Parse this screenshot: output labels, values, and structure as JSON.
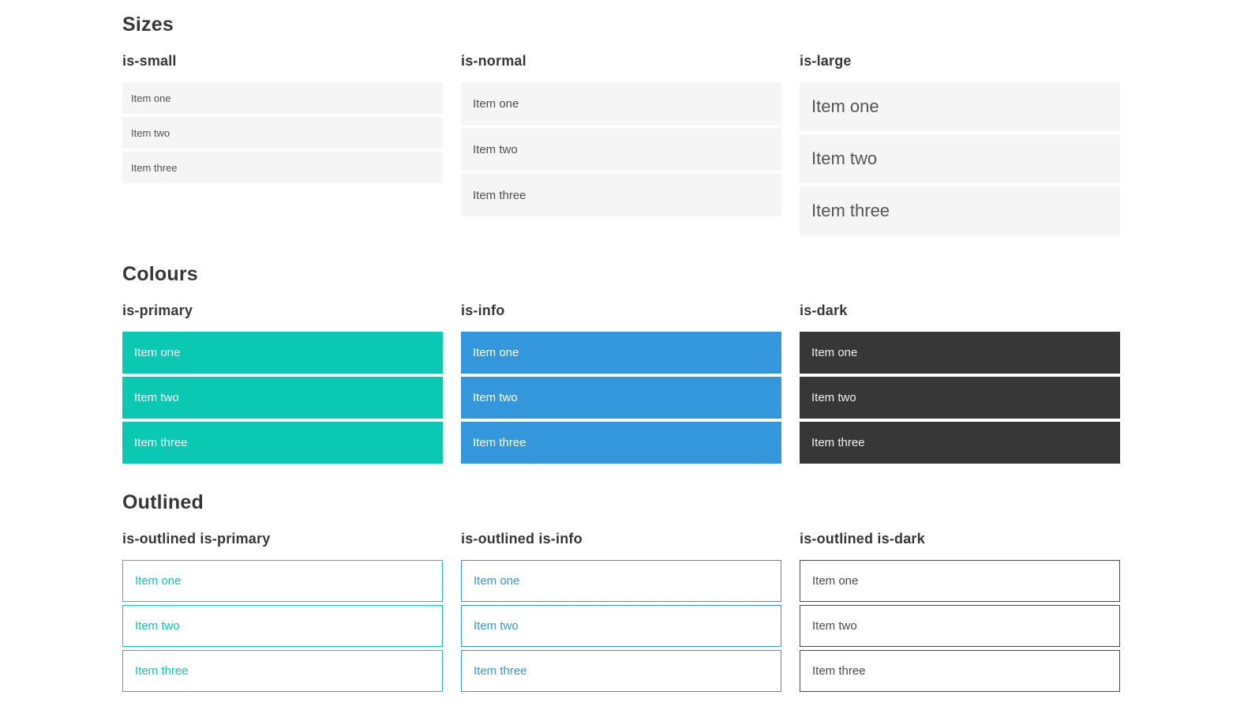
{
  "theme": {
    "primary": "#0bc8b2",
    "info": "#3496db",
    "dark": "#373737",
    "item-bg": "#f5f5f5"
  },
  "sections": [
    {
      "title": "Sizes",
      "groups": [
        {
          "label": "is-small",
          "items": [
            "Item one",
            "Item two",
            "Item three"
          ]
        },
        {
          "label": "is-normal",
          "items": [
            "Item one",
            "Item two",
            "Item three"
          ]
        },
        {
          "label": "is-large",
          "items": [
            "Item one",
            "Item two",
            "Item three"
          ]
        }
      ]
    },
    {
      "title": "Colours",
      "groups": [
        {
          "label": "is-primary",
          "items": [
            "Item one",
            "Item two",
            "Item three"
          ]
        },
        {
          "label": "is-info",
          "items": [
            "Item one",
            "Item two",
            "Item three"
          ]
        },
        {
          "label": "is-dark",
          "items": [
            "Item one",
            "Item two",
            "Item three"
          ]
        }
      ]
    },
    {
      "title": "Outlined",
      "groups": [
        {
          "label": "is-outlined is-primary",
          "items": [
            "Item one",
            "Item two",
            "Item three"
          ]
        },
        {
          "label": "is-outlined is-info",
          "items": [
            "Item one",
            "Item two",
            "Item three"
          ]
        },
        {
          "label": "is-outlined is-dark",
          "items": [
            "Item one",
            "Item two",
            "Item three"
          ]
        }
      ]
    }
  ]
}
